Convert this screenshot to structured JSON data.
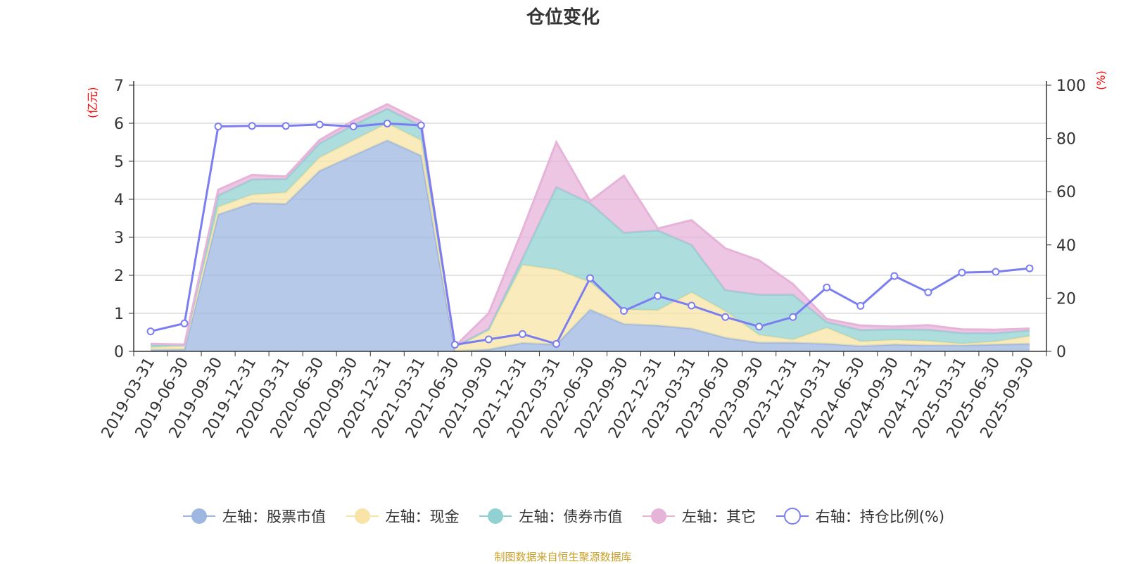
{
  "title": "仓位变化",
  "left_axis_unit": "(亿元)",
  "right_axis_unit": "(%)",
  "source": "制图数据来自恒生聚源数据库",
  "colors": {
    "stock": "#9db7e0",
    "cash": "#f7e4a6",
    "bond": "#92d1d1",
    "other": "#e6b3d9",
    "ratio": "#7b7ef0"
  },
  "legend": [
    {
      "key": "stock",
      "label": "左轴：股票市值"
    },
    {
      "key": "cash",
      "label": "左轴：现金"
    },
    {
      "key": "bond",
      "label": "左轴：债券市值"
    },
    {
      "key": "other",
      "label": "左轴：其它"
    },
    {
      "key": "ratio",
      "label": "右轴：持仓比例(%)"
    }
  ],
  "chart_data": {
    "type": "area",
    "title": "仓位变化",
    "categories": [
      "2019-03-31",
      "2019-06-30",
      "2019-09-30",
      "2019-12-31",
      "2020-03-31",
      "2020-06-30",
      "2020-09-30",
      "2020-12-31",
      "2021-03-31",
      "2021-06-30",
      "2021-09-30",
      "2021-12-31",
      "2022-03-31",
      "2022-06-30",
      "2022-09-30",
      "2022-12-31",
      "2023-03-31",
      "2023-06-30",
      "2023-09-30",
      "2023-12-31",
      "2024-03-31",
      "2024-06-30",
      "2024-09-30",
      "2024-12-31",
      "2025-03-31",
      "2025-06-30",
      "2025-09-30"
    ],
    "left_ylim": [
      0,
      7
    ],
    "left_yticks": [
      0,
      1,
      2,
      3,
      4,
      5,
      6,
      7
    ],
    "right_ylim": [
      0,
      100
    ],
    "right_yticks": [
      0,
      20,
      40,
      60,
      80,
      100
    ],
    "stacked_series": [
      {
        "name": "左轴：股票市值",
        "key": "stock",
        "values": [
          0.04,
          0.05,
          3.6,
          3.9,
          3.88,
          4.75,
          5.15,
          5.55,
          5.15,
          0.01,
          0.05,
          0.22,
          0.18,
          1.1,
          0.72,
          0.68,
          0.6,
          0.36,
          0.23,
          0.23,
          0.2,
          0.14,
          0.18,
          0.16,
          0.16,
          0.18,
          0.2
        ]
      },
      {
        "name": "左轴：现金",
        "key": "cash",
        "values": [
          0.06,
          0.1,
          0.2,
          0.22,
          0.3,
          0.35,
          0.4,
          0.45,
          0.4,
          0.1,
          0.5,
          2.05,
          1.97,
          0.72,
          0.38,
          0.4,
          0.95,
          0.7,
          0.2,
          0.08,
          0.42,
          0.12,
          0.12,
          0.11,
          0.04,
          0.08,
          0.2
        ]
      },
      {
        "name": "左轴：债券市值",
        "key": "bond",
        "values": [
          0.07,
          0.01,
          0.3,
          0.4,
          0.35,
          0.37,
          0.4,
          0.38,
          0.38,
          0.01,
          0.04,
          0.17,
          2.17,
          2.08,
          2.02,
          2.1,
          1.25,
          0.55,
          1.06,
          1.18,
          0.15,
          0.3,
          0.28,
          0.3,
          0.28,
          0.22,
          0.15
        ]
      },
      {
        "name": "左轴：其它",
        "key": "other",
        "values": [
          0.03,
          0.02,
          0.15,
          0.12,
          0.07,
          0.09,
          0.12,
          0.12,
          0.12,
          0.01,
          0.41,
          0.75,
          1.18,
          0.05,
          1.5,
          0.05,
          0.65,
          1.1,
          0.9,
          0.28,
          0.08,
          0.12,
          0.07,
          0.12,
          0.1,
          0.09,
          0.05
        ]
      }
    ],
    "line_series": {
      "name": "右轴：持仓比例(%)",
      "key": "ratio",
      "axis": "right",
      "values": [
        7.5,
        10.5,
        84.5,
        84.7,
        84.7,
        85.2,
        84.5,
        85.6,
        84.9,
        2.5,
        4.5,
        6.5,
        2.8,
        27.5,
        15.2,
        20.8,
        17.2,
        12.9,
        9.3,
        12.9,
        24.0,
        17.1,
        28.3,
        22.2,
        29.6,
        29.9,
        31.2
      ]
    },
    "xlabel": "",
    "ylabel": "(亿元)",
    "y2label": "(%)",
    "grid": true,
    "legend_position": "bottom"
  }
}
